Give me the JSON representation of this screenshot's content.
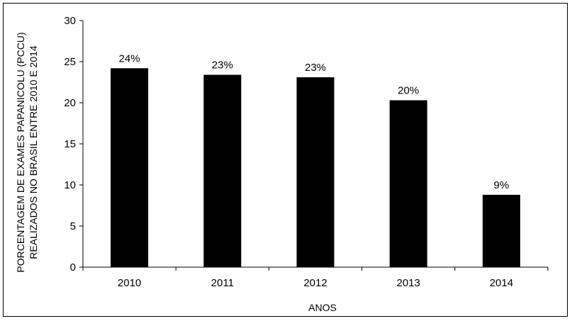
{
  "chart_data": {
    "type": "bar",
    "categories": [
      "2010",
      "2011",
      "2012",
      "2013",
      "2014"
    ],
    "values": [
      24.2,
      23.4,
      23.1,
      20.3,
      8.8
    ],
    "data_labels": [
      "24%",
      "23%",
      "23%",
      "20%",
      "9%"
    ],
    "xlabel": "ANOS",
    "ylabel_lines": [
      "PORCENTAGEM DE EXAMES PAPANICOLU (PCCU)",
      "REALIZADOS NO BRASIL ENTRE 2010 E 2014"
    ],
    "ylim": [
      0,
      30
    ],
    "yticks": [
      0,
      5,
      10,
      15,
      20,
      25,
      30
    ],
    "bar_color": "#000000",
    "grid": false,
    "legend": "none"
  }
}
